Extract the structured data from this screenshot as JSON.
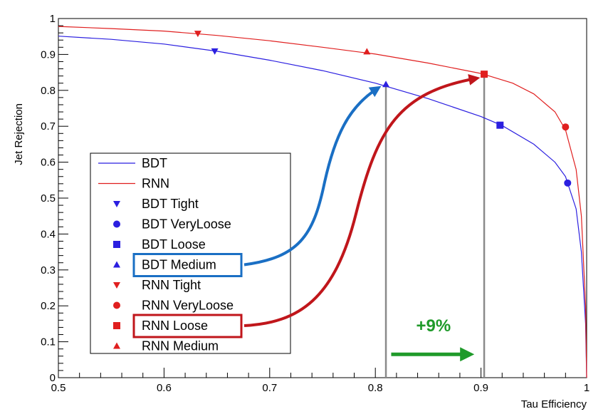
{
  "chart_data": {
    "type": "line",
    "title": "",
    "xlabel": "Tau Efficiency",
    "ylabel": "Jet Rejection",
    "xlim": [
      0.5,
      1.0
    ],
    "ylim": [
      0,
      1.0
    ],
    "x_ticks": [
      "0.5",
      "0.6",
      "0.7",
      "0.8",
      "0.9",
      "1"
    ],
    "y_ticks": [
      "0",
      "0.1",
      "0.2",
      "0.3",
      "0.4",
      "0.5",
      "0.6",
      "0.7",
      "0.8",
      "0.9",
      "1"
    ],
    "grid": false,
    "legend_position": "left",
    "series": [
      {
        "name": "BDT",
        "color": "#2b1fe0",
        "x": [
          0.5,
          0.55,
          0.6,
          0.65,
          0.7,
          0.75,
          0.8,
          0.85,
          0.9,
          0.92,
          0.95,
          0.97,
          0.98,
          0.99,
          0.995,
          0.999,
          1.0
        ],
        "y": [
          0.951,
          0.942,
          0.929,
          0.909,
          0.884,
          0.855,
          0.82,
          0.777,
          0.727,
          0.702,
          0.65,
          0.6,
          0.56,
          0.47,
          0.35,
          0.15,
          0.0
        ]
      },
      {
        "name": "RNN",
        "color": "#e01f1f",
        "x": [
          0.5,
          0.55,
          0.6,
          0.65,
          0.7,
          0.75,
          0.8,
          0.85,
          0.9,
          0.93,
          0.95,
          0.97,
          0.98,
          0.99,
          0.995,
          0.999,
          1.0
        ],
        "y": [
          0.978,
          0.972,
          0.965,
          0.953,
          0.938,
          0.92,
          0.901,
          0.876,
          0.847,
          0.82,
          0.79,
          0.74,
          0.69,
          0.58,
          0.45,
          0.2,
          0.0
        ]
      }
    ],
    "working_points": [
      {
        "name": "BDT Tight",
        "marker": "triangle-down",
        "color": "#2b1fe0",
        "x": 0.648,
        "y": 0.909
      },
      {
        "name": "BDT VeryLoose",
        "marker": "circle",
        "color": "#2b1fe0",
        "x": 0.982,
        "y": 0.542
      },
      {
        "name": "BDT Loose",
        "marker": "square",
        "color": "#2b1fe0",
        "x": 0.918,
        "y": 0.703
      },
      {
        "name": "BDT Medium",
        "marker": "triangle-up",
        "color": "#2b1fe0",
        "x": 0.81,
        "y": 0.817
      },
      {
        "name": "RNN Tight",
        "marker": "triangle-down",
        "color": "#e01f1f",
        "x": 0.632,
        "y": 0.958
      },
      {
        "name": "RNN VeryLoose",
        "marker": "circle",
        "color": "#e01f1f",
        "x": 0.98,
        "y": 0.698
      },
      {
        "name": "RNN Loose",
        "marker": "square",
        "color": "#e01f1f",
        "x": 0.903,
        "y": 0.845
      },
      {
        "name": "RNN Medium",
        "marker": "triangle-up",
        "color": "#e01f1f",
        "x": 0.792,
        "y": 0.908
      }
    ],
    "vertical_lines": [
      0.81,
      0.903
    ],
    "annotation": {
      "text": "+9%",
      "color": "#1f9a2a",
      "arrow_from_x": 0.815,
      "arrow_to_x": 0.895,
      "y": 0.065
    },
    "legend": [
      {
        "label": "BDT",
        "symbol": "line",
        "color": "#2b1fe0"
      },
      {
        "label": "RNN",
        "symbol": "line",
        "color": "#e01f1f"
      },
      {
        "label": "BDT Tight",
        "symbol": "triangle-down",
        "color": "#2b1fe0"
      },
      {
        "label": "BDT VeryLoose",
        "symbol": "circle",
        "color": "#2b1fe0"
      },
      {
        "label": "BDT Loose",
        "symbol": "square",
        "color": "#2b1fe0"
      },
      {
        "label": "BDT Medium",
        "symbol": "triangle-up",
        "color": "#2b1fe0",
        "highlight": "#1a6fc4"
      },
      {
        "label": "RNN Tight",
        "symbol": "triangle-down",
        "color": "#e01f1f"
      },
      {
        "label": "RNN VeryLoose",
        "symbol": "circle",
        "color": "#e01f1f"
      },
      {
        "label": "RNN Loose",
        "symbol": "square",
        "color": "#e01f1f",
        "highlight": "#c0161b"
      },
      {
        "label": "RNN Medium",
        "symbol": "triangle-up",
        "color": "#e01f1f"
      }
    ],
    "callout_arrows": [
      {
        "from_legend": "BDT Medium",
        "to_point": "BDT Medium",
        "color": "#1a6fc4"
      },
      {
        "from_legend": "RNN Loose",
        "to_point": "RNN Loose",
        "color": "#c0161b"
      }
    ]
  }
}
